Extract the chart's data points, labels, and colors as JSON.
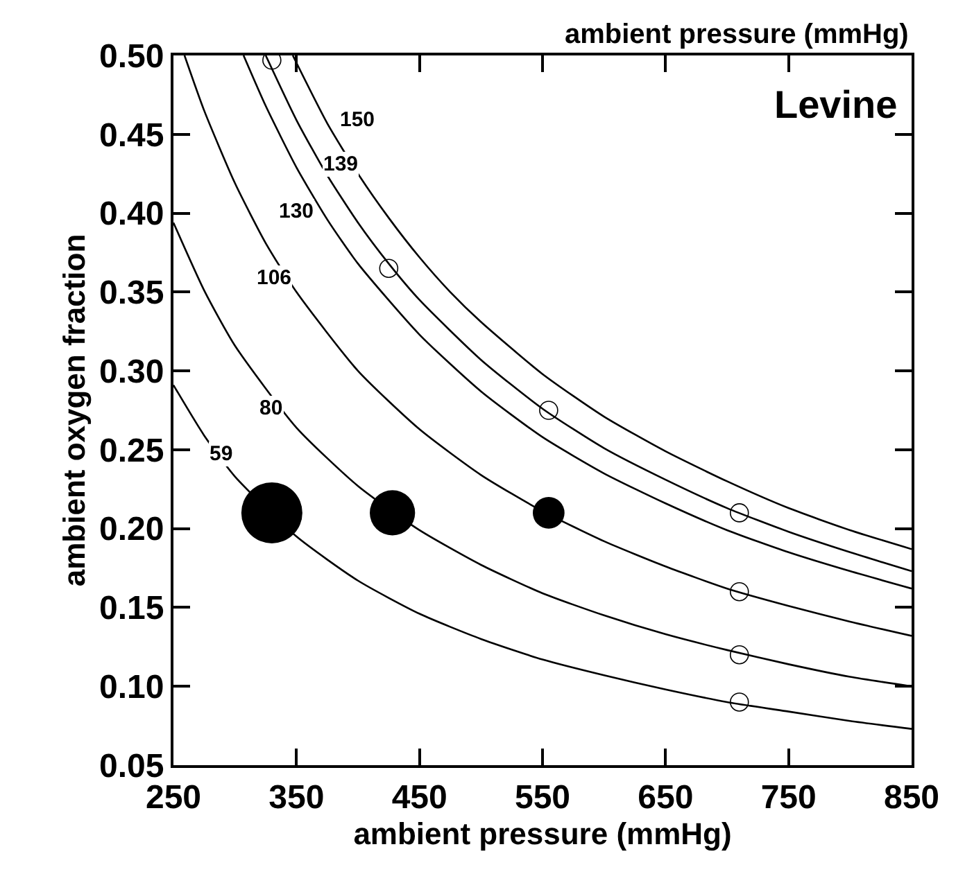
{
  "chart_data": {
    "type": "line",
    "xlabel": "ambient pressure (mmHg)",
    "ylabel": "ambient oxygen fraction",
    "xlim": [
      250,
      850
    ],
    "xticks": [
      250,
      350,
      450,
      550,
      650,
      750,
      850
    ],
    "ylim": [
      0.05,
      0.5
    ],
    "yticks": [
      0.05,
      {
        "value": 0.1,
        "label": "0.10"
      },
      0.15,
      {
        "value": 0.2,
        "label": "0.20"
      },
      0.25,
      {
        "value": 0.3,
        "label": "0.30"
      },
      0.35,
      {
        "value": 0.4,
        "label": "0.40"
      },
      0.45,
      {
        "value": 0.5,
        "label": "0.50"
      }
    ],
    "legend": false,
    "line_style": "solid",
    "series": [
      {
        "name": "150",
        "color": "#000000",
        "x": [
          347,
          375,
          400,
          425,
          450,
          475,
          500,
          550,
          600,
          650,
          700,
          750,
          800,
          850
        ],
        "values": [
          0.5,
          0.457,
          0.425,
          0.397,
          0.372,
          0.35,
          0.331,
          0.298,
          0.271,
          0.249,
          0.23,
          0.213,
          0.199,
          0.187
        ]
      },
      {
        "name": "139",
        "color": "#000000",
        "x": [
          325,
          350,
          375,
          400,
          425,
          450,
          500,
          550,
          600,
          650,
          700,
          750,
          800,
          850
        ],
        "values": [
          0.5,
          0.459,
          0.424,
          0.394,
          0.368,
          0.345,
          0.307,
          0.276,
          0.251,
          0.231,
          0.213,
          0.198,
          0.185,
          0.173
        ]
      },
      {
        "name": "130",
        "color": "#000000",
        "x": [
          307,
          325,
          350,
          375,
          400,
          450,
          500,
          550,
          600,
          650,
          700,
          750,
          800,
          850
        ],
        "values": [
          0.5,
          0.468,
          0.429,
          0.396,
          0.368,
          0.323,
          0.287,
          0.258,
          0.235,
          0.216,
          0.199,
          0.185,
          0.173,
          0.162
        ]
      },
      {
        "name": "106",
        "color": "#000000",
        "x": [
          259,
          275,
          300,
          325,
          350,
          400,
          450,
          500,
          550,
          600,
          650,
          700,
          750,
          800,
          850
        ],
        "values": [
          0.5,
          0.465,
          0.419,
          0.381,
          0.35,
          0.3,
          0.263,
          0.234,
          0.211,
          0.192,
          0.176,
          0.162,
          0.151,
          0.141,
          0.132
        ]
      },
      {
        "name": "80",
        "color": "#000000",
        "x": [
          250,
          275,
          300,
          350,
          400,
          450,
          500,
          550,
          600,
          650,
          700,
          750,
          800,
          850
        ],
        "values": [
          0.394,
          0.351,
          0.316,
          0.264,
          0.227,
          0.199,
          0.177,
          0.159,
          0.145,
          0.133,
          0.123,
          0.114,
          0.106,
          0.1
        ]
      },
      {
        "name": "59",
        "color": "#000000",
        "x": [
          250,
          275,
          300,
          350,
          400,
          450,
          500,
          550,
          600,
          650,
          700,
          750,
          800,
          850
        ],
        "values": [
          0.291,
          0.259,
          0.233,
          0.195,
          0.167,
          0.146,
          0.13,
          0.117,
          0.107,
          0.098,
          0.09,
          0.084,
          0.078,
          0.073
        ]
      },
      {
        "type": "bubble",
        "marker": "circle",
        "color": "#000000",
        "x": [
          330,
          428,
          555
        ],
        "values": [
          0.21,
          0.21,
          0.21
        ],
        "sizes": [
          1,
          0.55,
          0.27
        ]
      },
      {
        "type": "scatter",
        "marker": "circle",
        "color": "#000000",
        "x": [
          330,
          425,
          555,
          710,
          710,
          710,
          710
        ],
        "values": [
          0.497,
          0.365,
          0.275,
          0.21,
          0.16,
          0.12,
          0.09
        ]
      }
    ],
    "annotations": [
      "Levine",
      "ambient pressure (mmHg)"
    ]
  }
}
